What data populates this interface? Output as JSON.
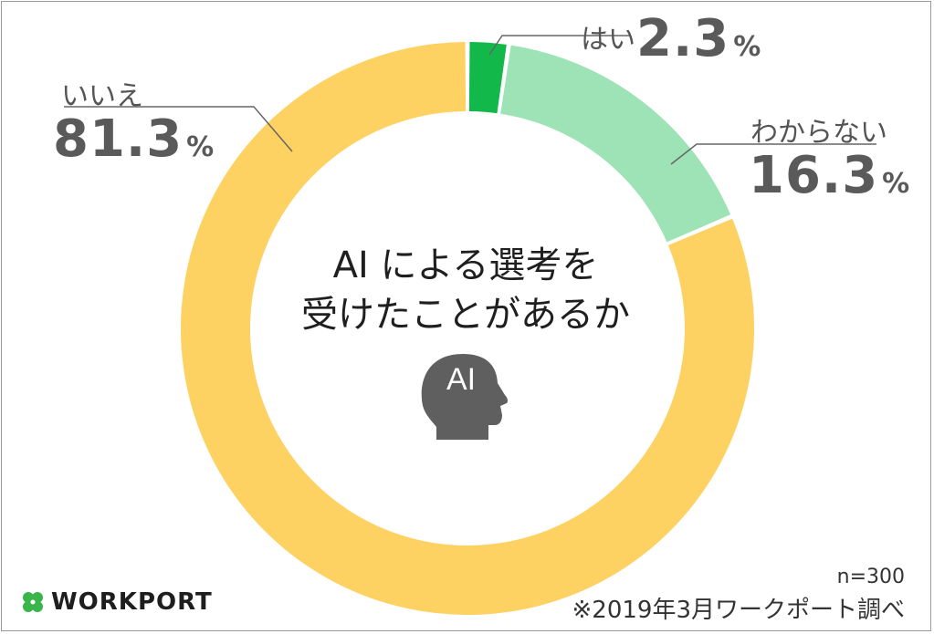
{
  "chart_data": {
    "type": "pie",
    "title": "AI による選考を 受けたことがあるか",
    "title_line1": "AI による選考を",
    "title_line2": "受けたことがあるか",
    "slices": [
      {
        "label": "はい",
        "value": 2.3,
        "color": "#12b84a"
      },
      {
        "label": "わからない",
        "value": 16.3,
        "color": "#9de3b5"
      },
      {
        "label": "いいえ",
        "value": 81.3,
        "color": "#fdd262"
      }
    ],
    "value_unit": "%",
    "center_icon_text": "AI"
  },
  "footer": {
    "sample_size": "n=300",
    "source": "※2019年3月ワークポート調べ"
  },
  "logo": {
    "text": "WORKPORT",
    "icon": "clover-icon",
    "icon_color": "#3ab54a"
  },
  "colors": {
    "leader_line": "#666666",
    "head_icon": "#5f5f5f"
  }
}
